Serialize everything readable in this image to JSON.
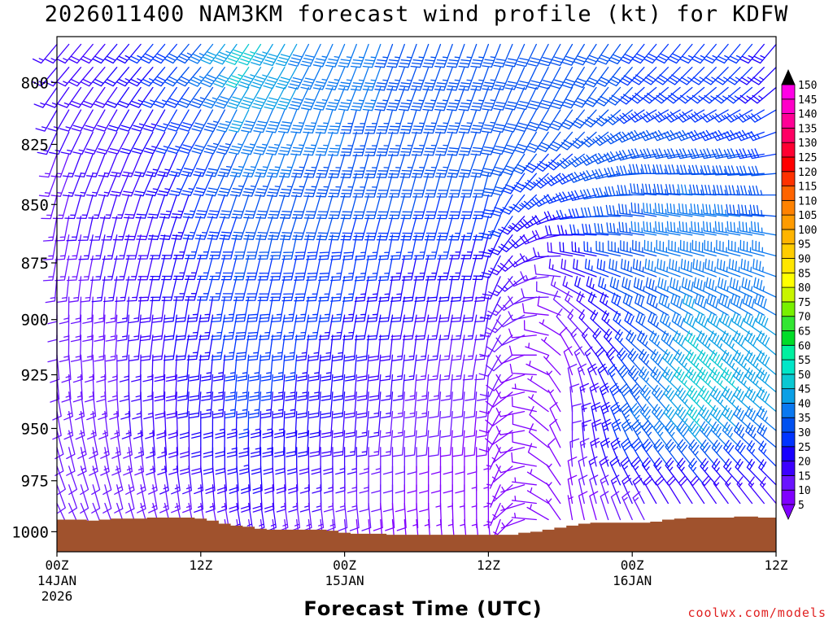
{
  "chart_data": {
    "type": "wind-barb-time-height",
    "title": "2026011400 NAM3KM forecast wind profile (kt) for KDFW",
    "xlabel": "Forecast Time (UTC)",
    "ylabel": "",
    "credit": "coolwx.com/models",
    "x_ticks": [
      {
        "hour": 0,
        "label": "00Z",
        "date": "14JAN",
        "year": "2026"
      },
      {
        "hour": 12,
        "label": "12Z",
        "date": "",
        "year": ""
      },
      {
        "hour": 24,
        "label": "00Z",
        "date": "15JAN",
        "year": ""
      },
      {
        "hour": 36,
        "label": "12Z",
        "date": "",
        "year": ""
      },
      {
        "hour": 48,
        "label": "00Z",
        "date": "16JAN",
        "year": ""
      },
      {
        "hour": 60,
        "label": "12Z",
        "date": "",
        "year": ""
      }
    ],
    "xlim": [
      0,
      60
    ],
    "y_ticks": [
      800,
      825,
      850,
      875,
      900,
      925,
      950,
      975,
      1000
    ],
    "ylim": [
      1010,
      782
    ],
    "colorbar": {
      "levels": [
        5,
        10,
        15,
        20,
        25,
        30,
        35,
        40,
        45,
        50,
        55,
        60,
        65,
        70,
        75,
        80,
        85,
        90,
        95,
        100,
        105,
        110,
        115,
        120,
        125,
        130,
        135,
        140,
        145,
        150
      ],
      "colors": [
        "#8000ff",
        "#6a14ff",
        "#3c00ff",
        "#1800ff",
        "#0034ff",
        "#0050f0",
        "#0a78f0",
        "#0aa0e6",
        "#0ac8d2",
        "#00e6c8",
        "#00f0a0",
        "#00dc28",
        "#32e632",
        "#78f000",
        "#c8f500",
        "#ffff00",
        "#ffe600",
        "#ffcd00",
        "#ffb400",
        "#ff9b00",
        "#ff8200",
        "#ff6400",
        "#ff3200",
        "#ff0000",
        "#ff0032",
        "#ff0064",
        "#ff0096",
        "#ff00c8",
        "#ff00e6",
        "#ff00ff"
      ]
    },
    "terrain_color": "#a0522d",
    "terrain_hpa": [
      994,
      994,
      994,
      994.5,
      994,
      993.5,
      993.5,
      993.5,
      993,
      993,
      993,
      993,
      993.5,
      994.5,
      996,
      997,
      997.5,
      998.5,
      999,
      999,
      999,
      999,
      999,
      999.5,
      1000.5,
      1001,
      1001,
      1001,
      1001.5,
      1001.5,
      1001.5,
      1001.5,
      1001.5,
      1001.5,
      1001.5,
      1001.5,
      1001.5,
      1001.5,
      1001.5,
      1000.5,
      1000,
      999,
      998,
      997,
      996,
      995.5,
      995.5,
      995.5,
      995.5,
      995.5,
      995,
      994,
      993.5,
      993,
      993,
      993,
      993,
      992.5,
      992.5,
      993,
      993
    ],
    "levels_hpa": [
      785,
      794,
      802,
      811,
      820,
      829,
      837,
      846,
      855,
      863,
      872,
      881,
      890,
      898,
      907,
      916,
      925,
      933,
      942,
      951,
      959,
      968,
      977,
      986,
      994
    ],
    "series": [
      {
        "name": "wind_direction_deg",
        "keyframes": [
          {
            "hour": 0,
            "dir": [
              220,
              220,
              215,
              210,
              205,
              200,
              200,
              195,
              190,
              190,
              190,
              185,
              180,
              180,
              180,
              175,
              175,
              170,
              170,
              165,
              165,
              160,
              160,
              155,
              150
            ]
          },
          {
            "hour": 12,
            "dir": [
              220,
              220,
              215,
              210,
              210,
              205,
              205,
              200,
              200,
              195,
              195,
              195,
              190,
              190,
              190,
              185,
              185,
              185,
              180,
              180,
              180,
              175,
              175,
              170,
              170
            ]
          },
          {
            "hour": 26,
            "dir": [
              200,
              200,
              200,
              195,
              195,
              195,
              195,
              195,
              195,
              190,
              190,
              190,
              190,
              190,
              185,
              185,
              185,
              185,
              185,
              185,
              180,
              180,
              180,
              175,
              175
            ]
          },
          {
            "hour": 36,
            "dir": [
              200,
              200,
              200,
              200,
              200,
              200,
              195,
              195,
              195,
              195,
              195,
              190,
              190,
              190,
              190,
              190,
              185,
              185,
              185,
              185,
              180,
              180,
              180,
              180,
              175
            ]
          },
          {
            "hour": 43,
            "dir": [
              210,
              210,
              210,
              215,
              220,
              230,
              240,
              250,
              260,
              270,
              280,
              290,
              300,
              310,
              320,
              330,
              340,
              350,
              355,
              360,
              360,
              355,
              350,
              350,
              350
            ]
          },
          {
            "hour": 50,
            "dir": [
              220,
              225,
              230,
              240,
              250,
              260,
              270,
              275,
              280,
              280,
              285,
              290,
              295,
              300,
              305,
              310,
              315,
              315,
              320,
              320,
              325,
              325,
              325,
              330,
              330
            ]
          },
          {
            "hour": 60,
            "dir": [
              220,
              225,
              230,
              240,
              250,
              260,
              265,
              270,
              275,
              280,
              285,
              290,
              295,
              300,
              305,
              310,
              310,
              310,
              310,
              310,
              310,
              315,
              315,
              320,
              320
            ]
          }
        ]
      },
      {
        "name": "wind_speed_kt",
        "keyframes": [
          {
            "hour": 0,
            "spd": [
              15,
              15,
              15,
              15,
              15,
              14,
              14,
              14,
              14,
              13,
              13,
              13,
              12,
              12,
              12,
              12,
              12,
              12,
              12,
              12,
              12,
              11,
              11,
              10,
              9
            ]
          },
          {
            "hour": 6,
            "spd": [
              22,
              21,
              20,
              20,
              19,
              18,
              18,
              17,
              17,
              17,
              16,
              16,
              15,
              15,
              15,
              15,
              15,
              15,
              15,
              14,
              14,
              13,
              12,
              11,
              10
            ]
          },
          {
            "hour": 12,
            "spd": [
              33,
              32,
              30,
              29,
              28,
              28,
              27,
              26,
              25,
              25,
              24,
              24,
              23,
              23,
              23,
              22,
              22,
              22,
              21,
              20,
              19,
              17,
              15,
              13,
              12
            ]
          },
          {
            "hour": 16,
            "spd": [
              48,
              45,
              42,
              40,
              37,
              35,
              33,
              32,
              31,
              30,
              30,
              29,
              28,
              28,
              28,
              27,
              27,
              26,
              25,
              24,
              23,
              21,
              19,
              16,
              13
            ]
          },
          {
            "hour": 20,
            "spd": [
              40,
              40,
              40,
              38,
              36,
              35,
              33,
              32,
              31,
              30,
              29,
              28,
              27,
              26,
              25,
              25,
              24,
              23,
              22,
              21,
              20,
              18,
              16,
              14,
              12
            ]
          },
          {
            "hour": 24,
            "spd": [
              36,
              36,
              36,
              35,
              35,
              34,
              33,
              32,
              30,
              28,
              27,
              26,
              25,
              24,
              23,
              22,
              21,
              20,
              19,
              18,
              17,
              15,
              14,
              12,
              10
            ]
          },
          {
            "hour": 30,
            "spd": [
              34,
              34,
              34,
              34,
              33,
              33,
              32,
              30,
              28,
              26,
              24,
              22,
              20,
              18,
              16,
              15,
              14,
              13,
              12,
              11,
              10,
              9,
              8,
              7,
              6
            ]
          },
          {
            "hour": 36,
            "spd": [
              33,
              33,
              33,
              33,
              32,
              32,
              31,
              29,
              27,
              24,
              22,
              19,
              17,
              15,
              13,
              12,
              11,
              10,
              9,
              8,
              7,
              7,
              6,
              6,
              5
            ]
          },
          {
            "hour": 42,
            "spd": [
              30,
              30,
              30,
              30,
              30,
              29,
              28,
              25,
              22,
              19,
              15,
              12,
              10,
              8,
              7,
              6,
              6,
              6,
              7,
              8,
              8,
              8,
              7,
              6,
              5
            ]
          },
          {
            "hour": 48,
            "spd": [
              30,
              30,
              30,
              30,
              31,
              32,
              33,
              34,
              34,
              34,
              33,
              32,
              30,
              28,
              27,
              27,
              28,
              30,
              32,
              33,
              31,
              28,
              23,
              18,
              13
            ]
          },
          {
            "hour": 54,
            "spd": [
              27,
              27,
              27,
              28,
              30,
              32,
              34,
              35,
              36,
              37,
              38,
              38,
              38,
              40,
              42,
              45,
              47,
              48,
              47,
              45,
              40,
              33,
              25,
              18,
              12
            ]
          },
          {
            "hour": 60,
            "spd": [
              24,
              24,
              24,
              25,
              27,
              29,
              31,
              33,
              34,
              35,
              36,
              36,
              36,
              38,
              40,
              41,
              42,
              42,
              40,
              37,
              32,
              26,
              20,
              15,
              10
            ]
          }
        ]
      }
    ]
  }
}
